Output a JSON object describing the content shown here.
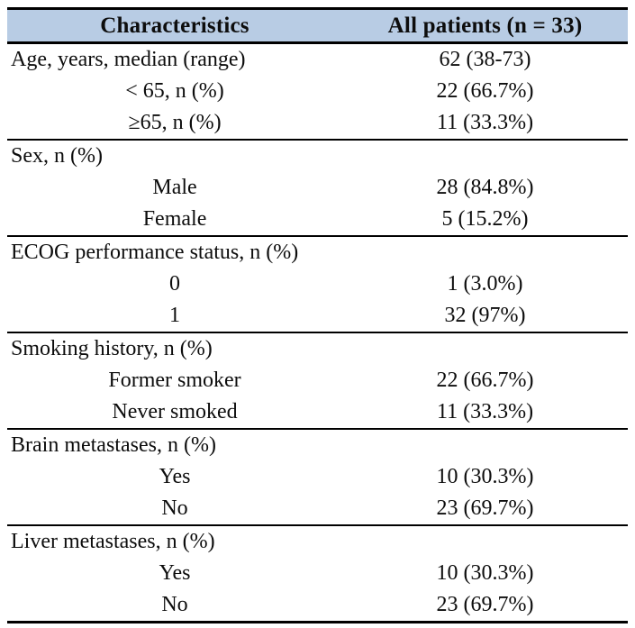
{
  "page": {
    "background": "#ffffff",
    "text_color": "#0d0d0d"
  },
  "table": {
    "header": {
      "characteristics": "Characteristics",
      "all_patients": "All patients (n = 33)",
      "background": "#b8cce4",
      "border_color": "#000000"
    },
    "sections": [
      {
        "rows": [
          {
            "label": "Age, years, median (range)",
            "value": "62 (38-73)",
            "indent": false
          },
          {
            "label": "< 65, n (%)",
            "value": "22 (66.7%)",
            "indent": true
          },
          {
            "label": "≥65, n (%)",
            "value": "11 (33.3%)",
            "indent": true
          }
        ]
      },
      {
        "rows": [
          {
            "label": "Sex, n (%)",
            "value": "",
            "indent": false
          },
          {
            "label": "Male",
            "value": "28 (84.8%)",
            "indent": true
          },
          {
            "label": "Female",
            "value": "5 (15.2%)",
            "indent": true
          }
        ]
      },
      {
        "rows": [
          {
            "label": "ECOG performance status, n (%)",
            "value": "",
            "indent": false
          },
          {
            "label": "0",
            "value": "1 (3.0%)",
            "indent": true
          },
          {
            "label": "1",
            "value": "32 (97%)",
            "indent": true
          }
        ]
      },
      {
        "rows": [
          {
            "label": "Smoking history, n (%)",
            "value": "",
            "indent": false
          },
          {
            "label": "Former smoker",
            "value": "22 (66.7%)",
            "indent": true
          },
          {
            "label": "Never smoked",
            "value": "11 (33.3%)",
            "indent": true
          }
        ]
      },
      {
        "rows": [
          {
            "label": "Brain metastases, n (%)",
            "value": "",
            "indent": false
          },
          {
            "label": "Yes",
            "value": "10 (30.3%)",
            "indent": true
          },
          {
            "label": "No",
            "value": "23 (69.7%)",
            "indent": true
          }
        ]
      },
      {
        "rows": [
          {
            "label": "Liver metastases, n (%)",
            "value": "",
            "indent": false
          },
          {
            "label": "Yes",
            "value": "10 (30.3%)",
            "indent": true
          },
          {
            "label": "No",
            "value": "23 (69.7%)",
            "indent": true
          }
        ]
      }
    ]
  }
}
